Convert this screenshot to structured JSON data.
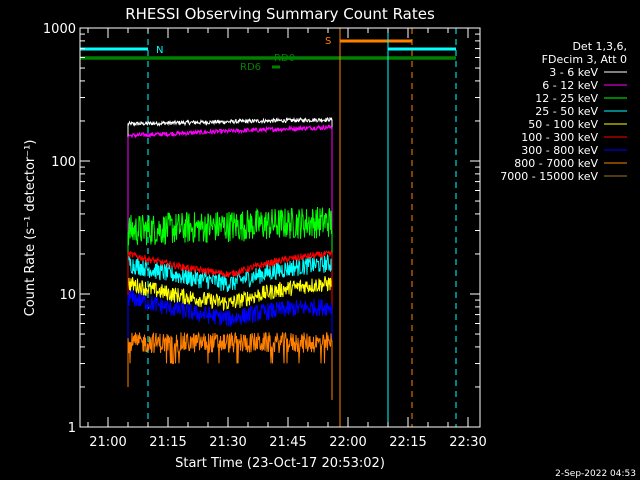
{
  "chart_data": {
    "type": "line",
    "title": "RHESSI Observing Summary Count Rates",
    "xlabel": "Start Time (23-Oct-17 20:53:02)",
    "ylabel": "Count Rate (s⁻¹ detector⁻¹)",
    "yscale": "log",
    "ylim": [
      1,
      1000
    ],
    "xlim_minutes": [
      20.9,
      22.55
    ],
    "x_tick_labels": [
      "21:00",
      "21:15",
      "21:30",
      "21:45",
      "22:00",
      "22:15",
      "22:30"
    ],
    "y_tick_labels": [
      "1",
      "10",
      "100",
      "1000"
    ],
    "legend_header": [
      "Det 1,3,6,",
      "FDecim 3, Att 0"
    ],
    "legend_position": "right",
    "footer": "2-Sep-2022 04:53",
    "flags": {
      "N": {
        "label": "N",
        "color": "#00ffff",
        "intervals": [
          [
            "20:53",
            "21:10"
          ],
          [
            "22:10",
            "22:27"
          ]
        ]
      },
      "S": {
        "label": "S",
        "color": "#ff8000",
        "intervals": [
          [
            "21:58",
            "22:16"
          ]
        ]
      },
      "RD0": {
        "label": "RD0",
        "color": "#008000",
        "intervals": [
          [
            "20:53",
            "22:27"
          ]
        ]
      },
      "RD6": {
        "label": "RD6",
        "color": "#008000",
        "intervals": [
          [
            "21:41",
            "21:43"
          ]
        ]
      }
    },
    "vertical_lines": [
      {
        "time": "20:53",
        "color": "#00ffff",
        "style": "solid"
      },
      {
        "time": "21:10",
        "color": "#00ffff",
        "style": "dashed"
      },
      {
        "time": "21:58",
        "color": "#ff8000",
        "style": "solid"
      },
      {
        "time": "22:10",
        "color": "#00ffff",
        "style": "solid"
      },
      {
        "time": "22:16",
        "color": "#ff8000",
        "style": "dashed"
      },
      {
        "time": "22:27",
        "color": "#00ffff",
        "style": "dashed"
      }
    ],
    "data_interval": [
      "21:05",
      "21:56"
    ],
    "series": [
      {
        "name": "3 - 6 keV",
        "color": "#ffffff",
        "profile": "flat",
        "values": [
          190,
          205
        ],
        "noise": 0.035
      },
      {
        "name": "6 - 12 keV",
        "color": "#ff00ff",
        "profile": "rising",
        "values": [
          155,
          180
        ],
        "noise": 0.04
      },
      {
        "name": "12 - 25 keV",
        "color": "#00ff00",
        "profile": "noisy",
        "values": [
          30,
          35
        ],
        "noise": 0.28
      },
      {
        "name": "25 - 50 keV",
        "color": "#00ffff",
        "profile": "dip",
        "values": [
          17,
          12,
          17
        ],
        "noise": 0.16
      },
      {
        "name": "50 - 100 keV",
        "color": "#ffff00",
        "profile": "dip",
        "values": [
          12,
          8.5,
          12
        ],
        "noise": 0.14
      },
      {
        "name": "100 - 300 keV",
        "color": "#ff0000",
        "profile": "dip",
        "values": [
          20,
          14,
          20
        ],
        "noise": 0.06
      },
      {
        "name": "300 - 800 keV",
        "color": "#0000ff",
        "profile": "dip",
        "values": [
          9.5,
          6.5,
          8
        ],
        "noise": 0.15
      },
      {
        "name": "800 - 7000 keV",
        "color": "#ff8000",
        "profile": "noisy",
        "values": [
          4.3,
          4.3
        ],
        "noise": 0.18
      },
      {
        "name": "7000 - 15000 keV",
        "color": "#a07820",
        "profile": "hidden",
        "values": [],
        "noise": 0
      }
    ]
  }
}
